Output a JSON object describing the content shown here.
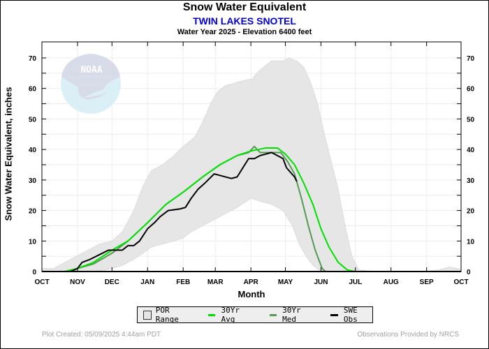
{
  "header": {
    "title": "Snow Water Equivalent",
    "station": "TWIN LAKES SNOTEL",
    "subtitle": "Water Year 2025 -  Elevation 6400 feet"
  },
  "footer": {
    "created": "Plot Created: 05/09/2025 4:44am PDT",
    "source": "Observations Provided by NRCS"
  },
  "watermark": {
    "text": "NOAA",
    "icon": "noaa-logo-icon"
  },
  "legend": {
    "items": [
      {
        "label": "POR Range",
        "color": "#e6e6e6",
        "kind": "box"
      },
      {
        "label": "30Yr Avg",
        "color": "#00e000",
        "kind": "line"
      },
      {
        "label": "30Yr Med",
        "color": "#559955",
        "kind": "line"
      },
      {
        "label": "SWE Obs",
        "color": "#000000",
        "kind": "line"
      }
    ]
  },
  "chart_data": {
    "type": "area",
    "title": "Snow Water Equivalent",
    "xlabel": "Month",
    "ylabel": "Snow Water Equivalent, inches",
    "x_units": "day of water year (0 = Oct 1)",
    "xlim": [
      0,
      365
    ],
    "ylim": [
      0,
      75
    ],
    "grid": true,
    "legend_position": "bottom",
    "x_ticks": [
      {
        "day": 0,
        "label": "OCT"
      },
      {
        "day": 31,
        "label": "NOV"
      },
      {
        "day": 61,
        "label": "DEC"
      },
      {
        "day": 92,
        "label": "JAN"
      },
      {
        "day": 123,
        "label": "FEB"
      },
      {
        "day": 151,
        "label": "MAR"
      },
      {
        "day": 182,
        "label": "APR"
      },
      {
        "day": 212,
        "label": "MAY"
      },
      {
        "day": 243,
        "label": "JUN"
      },
      {
        "day": 273,
        "label": "JUL"
      },
      {
        "day": 304,
        "label": "AUG"
      },
      {
        "day": 335,
        "label": "SEP"
      },
      {
        "day": 365,
        "label": "OCT"
      }
    ],
    "y_ticks": [
      0,
      10,
      20,
      30,
      40,
      50,
      60,
      70
    ],
    "series": [
      {
        "name": "POR Range",
        "kind": "band",
        "upper": [
          [
            0,
            1
          ],
          [
            10,
            1
          ],
          [
            20,
            3
          ],
          [
            30,
            5
          ],
          [
            40,
            7
          ],
          [
            50,
            9
          ],
          [
            61,
            10
          ],
          [
            70,
            13
          ],
          [
            80,
            20
          ],
          [
            88,
            28
          ],
          [
            95,
            33
          ],
          [
            105,
            35
          ],
          [
            115,
            38
          ],
          [
            123,
            41
          ],
          [
            133,
            44
          ],
          [
            140,
            49
          ],
          [
            147,
            55
          ],
          [
            153,
            59
          ],
          [
            160,
            61
          ],
          [
            170,
            62
          ],
          [
            180,
            63
          ],
          [
            183,
            63
          ],
          [
            187,
            65
          ],
          [
            193,
            67
          ],
          [
            200,
            69
          ],
          [
            210,
            69
          ],
          [
            215,
            70
          ],
          [
            222,
            69
          ],
          [
            228,
            67
          ],
          [
            234,
            62
          ],
          [
            240,
            55
          ],
          [
            246,
            45
          ],
          [
            252,
            36
          ],
          [
            258,
            27
          ],
          [
            264,
            15
          ],
          [
            270,
            5
          ],
          [
            276,
            0.5
          ],
          [
            290,
            0
          ],
          [
            330,
            0
          ],
          [
            345,
            0.5
          ],
          [
            355,
            1.5
          ],
          [
            362,
            1
          ],
          [
            365,
            0.5
          ]
        ],
        "lower": [
          [
            0,
            0
          ],
          [
            30,
            0
          ],
          [
            45,
            0
          ],
          [
            55,
            0.5
          ],
          [
            61,
            1
          ],
          [
            70,
            2
          ],
          [
            80,
            4
          ],
          [
            88,
            6
          ],
          [
            95,
            8
          ],
          [
            105,
            9
          ],
          [
            115,
            10
          ],
          [
            123,
            11
          ],
          [
            130,
            13
          ],
          [
            140,
            15
          ],
          [
            150,
            17
          ],
          [
            160,
            19
          ],
          [
            170,
            21
          ],
          [
            178,
            23
          ],
          [
            182,
            24
          ],
          [
            190,
            23
          ],
          [
            200,
            22
          ],
          [
            210,
            20
          ],
          [
            218,
            15
          ],
          [
            224,
            9
          ],
          [
            230,
            5
          ],
          [
            236,
            2
          ],
          [
            243,
            0
          ],
          [
            365,
            0
          ]
        ]
      },
      {
        "name": "30Yr Avg",
        "points": [
          [
            0,
            0
          ],
          [
            20,
            0
          ],
          [
            31,
            1
          ],
          [
            45,
            3
          ],
          [
            61,
            7
          ],
          [
            75,
            10
          ],
          [
            92,
            16
          ],
          [
            108,
            22
          ],
          [
            123,
            26
          ],
          [
            140,
            31
          ],
          [
            155,
            35
          ],
          [
            170,
            38
          ],
          [
            182,
            39.5
          ],
          [
            195,
            40.5
          ],
          [
            205,
            40.5
          ],
          [
            212,
            38.5
          ],
          [
            220,
            35
          ],
          [
            228,
            29
          ],
          [
            236,
            22
          ],
          [
            243,
            14
          ],
          [
            250,
            8
          ],
          [
            258,
            3
          ],
          [
            266,
            0.5
          ],
          [
            273,
            0
          ],
          [
            365,
            0
          ]
        ]
      },
      {
        "name": "30Yr Med",
        "points": [
          [
            0,
            0
          ],
          [
            20,
            0
          ],
          [
            31,
            1
          ],
          [
            45,
            2.5
          ],
          [
            61,
            6
          ],
          [
            75,
            10
          ],
          [
            92,
            16
          ],
          [
            108,
            22
          ],
          [
            123,
            26
          ],
          [
            140,
            31
          ],
          [
            155,
            35
          ],
          [
            170,
            38
          ],
          [
            180,
            39
          ],
          [
            185,
            41
          ],
          [
            190,
            39
          ],
          [
            200,
            39
          ],
          [
            208,
            39
          ],
          [
            214,
            36
          ],
          [
            220,
            32
          ],
          [
            226,
            24
          ],
          [
            232,
            15
          ],
          [
            238,
            7
          ],
          [
            244,
            1
          ],
          [
            247,
            0
          ],
          [
            365,
            0
          ]
        ]
      },
      {
        "name": "SWE Obs",
        "points": [
          [
            0,
            0
          ],
          [
            25,
            0
          ],
          [
            31,
            1
          ],
          [
            35,
            3
          ],
          [
            42,
            4
          ],
          [
            50,
            5.5
          ],
          [
            58,
            7
          ],
          [
            61,
            7
          ],
          [
            70,
            7
          ],
          [
            75,
            8.5
          ],
          [
            80,
            8.5
          ],
          [
            85,
            10
          ],
          [
            92,
            14
          ],
          [
            98,
            16
          ],
          [
            103,
            18
          ],
          [
            110,
            20
          ],
          [
            120,
            20.5
          ],
          [
            125,
            21
          ],
          [
            130,
            24
          ],
          [
            136,
            27
          ],
          [
            142,
            29
          ],
          [
            150,
            32
          ],
          [
            155,
            31.5
          ],
          [
            165,
            30.5
          ],
          [
            170,
            31
          ],
          [
            175,
            34
          ],
          [
            180,
            37
          ],
          [
            185,
            37
          ],
          [
            190,
            38
          ],
          [
            195,
            38.5
          ],
          [
            200,
            39
          ],
          [
            205,
            38
          ],
          [
            210,
            37
          ],
          [
            213,
            34
          ],
          [
            220,
            31
          ],
          [
            222,
            29.5
          ]
        ]
      }
    ]
  }
}
